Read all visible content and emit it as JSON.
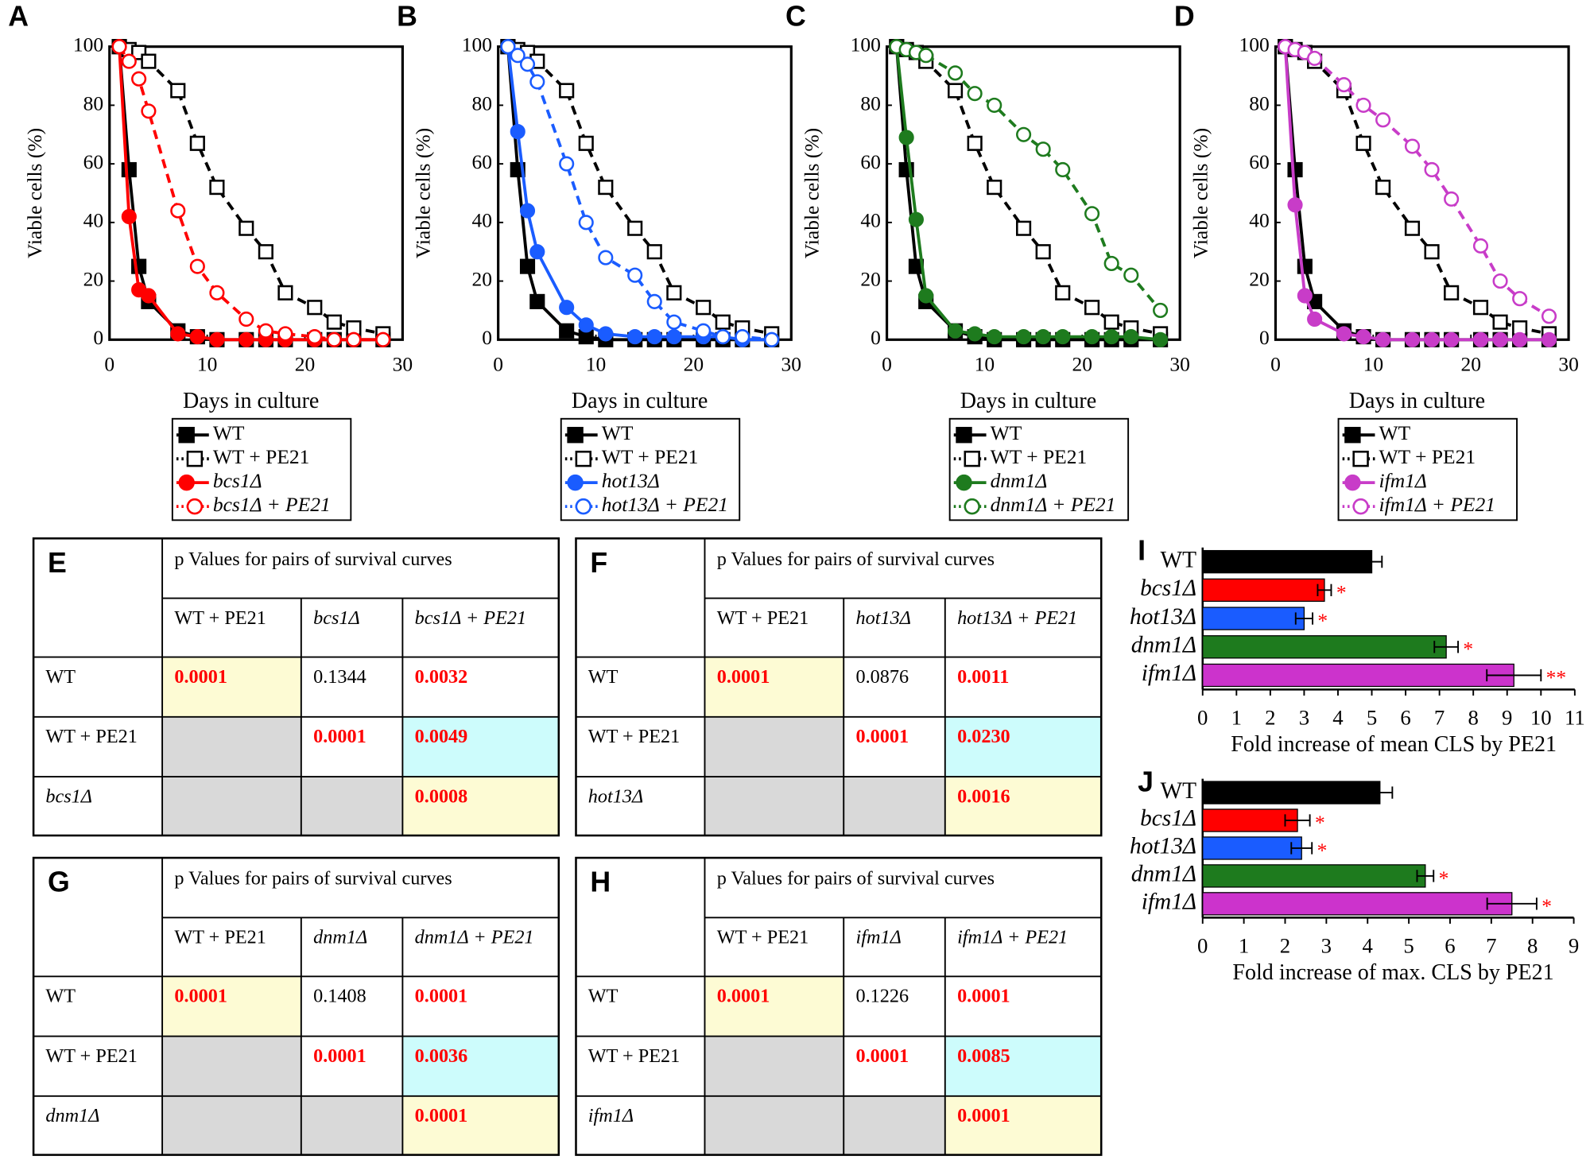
{
  "chart_data": [
    {
      "type": "line",
      "panel": "A",
      "ylabel": "Viable cells (%)",
      "xlabel": "Days in culture",
      "x": [
        1,
        2,
        3,
        4,
        7,
        9,
        11,
        14,
        16,
        18,
        21,
        23,
        25,
        28
      ],
      "xlim": [
        0,
        30
      ],
      "xticks": [
        0,
        10,
        20,
        30
      ],
      "ylim": [
        0,
        100
      ],
      "yticks": [
        0,
        20,
        40,
        60,
        80,
        100
      ],
      "series": [
        {
          "name": "WT",
          "color": "#000000",
          "marker": "square",
          "filled": true,
          "dashed": false,
          "values": [
            100,
            58,
            25,
            13,
            3,
            1,
            0,
            0,
            0,
            0,
            0,
            0,
            0,
            0
          ]
        },
        {
          "name": "WT + PE21",
          "color": "#000000",
          "marker": "square",
          "filled": false,
          "dashed": true,
          "values": [
            100,
            99,
            98,
            95,
            85,
            67,
            52,
            38,
            30,
            16,
            11,
            6,
            4,
            2
          ]
        },
        {
          "name": "bcs1Δ",
          "color": "#ff0000",
          "marker": "circle",
          "filled": true,
          "dashed": false,
          "values": [
            100,
            42,
            17,
            15,
            2,
            1,
            0,
            0,
            0,
            0,
            0,
            0,
            0,
            0
          ]
        },
        {
          "name": "bcs1Δ + PE21",
          "color": "#ff0000",
          "marker": "circle",
          "filled": false,
          "dashed": true,
          "values": [
            100,
            95,
            89,
            78,
            44,
            25,
            16,
            7,
            3,
            2,
            1,
            0,
            0,
            0
          ]
        }
      ]
    },
    {
      "type": "line",
      "panel": "B",
      "ylabel": "Viable cells (%)",
      "xlabel": "Days in culture",
      "x": [
        1,
        2,
        3,
        4,
        7,
        9,
        11,
        14,
        16,
        18,
        21,
        23,
        25,
        28
      ],
      "xlim": [
        0,
        30
      ],
      "xticks": [
        0,
        10,
        20,
        30
      ],
      "ylim": [
        0,
        100
      ],
      "yticks": [
        0,
        20,
        40,
        60,
        80,
        100
      ],
      "series": [
        {
          "name": "WT",
          "color": "#000000",
          "marker": "square",
          "filled": true,
          "dashed": false,
          "values": [
            100,
            58,
            25,
            13,
            3,
            1,
            0,
            0,
            0,
            0,
            0,
            0,
            0,
            0
          ]
        },
        {
          "name": "WT + PE21",
          "color": "#000000",
          "marker": "square",
          "filled": false,
          "dashed": true,
          "values": [
            100,
            99,
            98,
            95,
            85,
            67,
            52,
            38,
            30,
            16,
            11,
            6,
            4,
            2
          ]
        },
        {
          "name": "hot13Δ",
          "color": "#1a5cff",
          "marker": "circle",
          "filled": true,
          "dashed": false,
          "values": [
            100,
            71,
            44,
            30,
            11,
            5,
            2,
            1,
            1,
            1,
            1,
            1,
            0,
            0
          ]
        },
        {
          "name": "hot13Δ + PE21",
          "color": "#1a5cff",
          "marker": "circle",
          "filled": false,
          "dashed": true,
          "values": [
            100,
            97,
            94,
            88,
            60,
            40,
            28,
            22,
            13,
            6,
            3,
            1,
            1,
            0
          ]
        }
      ]
    },
    {
      "type": "line",
      "panel": "C",
      "ylabel": "Viable cells (%)",
      "xlabel": "Days in culture",
      "x": [
        1,
        2,
        3,
        4,
        7,
        9,
        11,
        14,
        16,
        18,
        21,
        23,
        25,
        28
      ],
      "xlim": [
        0,
        30
      ],
      "xticks": [
        0,
        10,
        20,
        30
      ],
      "ylim": [
        0,
        100
      ],
      "yticks": [
        0,
        20,
        40,
        60,
        80,
        100
      ],
      "series": [
        {
          "name": "WT",
          "color": "#000000",
          "marker": "square",
          "filled": true,
          "dashed": false,
          "values": [
            100,
            58,
            25,
            13,
            3,
            1,
            0,
            0,
            0,
            0,
            0,
            0,
            0,
            0
          ]
        },
        {
          "name": "WT + PE21",
          "color": "#000000",
          "marker": "square",
          "filled": false,
          "dashed": true,
          "values": [
            100,
            99,
            98,
            95,
            85,
            67,
            52,
            38,
            30,
            16,
            11,
            6,
            4,
            2
          ]
        },
        {
          "name": "dnm1Δ",
          "color": "#1e7b1e",
          "marker": "circle",
          "filled": true,
          "dashed": false,
          "values": [
            100,
            69,
            41,
            15,
            3,
            2,
            1,
            1,
            1,
            1,
            1,
            1,
            1,
            0
          ]
        },
        {
          "name": "dnm1Δ + PE21",
          "color": "#1e7b1e",
          "marker": "circle",
          "filled": false,
          "dashed": true,
          "values": [
            100,
            99,
            98,
            97,
            91,
            84,
            80,
            70,
            65,
            58,
            43,
            26,
            22,
            10
          ]
        }
      ]
    },
    {
      "type": "line",
      "panel": "D",
      "ylabel": "Viable cells (%)",
      "xlabel": "Days in culture",
      "x": [
        1,
        2,
        3,
        4,
        7,
        9,
        11,
        14,
        16,
        18,
        21,
        23,
        25,
        28
      ],
      "xlim": [
        0,
        30
      ],
      "xticks": [
        0,
        10,
        20,
        30
      ],
      "ylim": [
        0,
        100
      ],
      "yticks": [
        0,
        20,
        40,
        60,
        80,
        100
      ],
      "series": [
        {
          "name": "WT",
          "color": "#000000",
          "marker": "square",
          "filled": true,
          "dashed": false,
          "values": [
            100,
            58,
            25,
            13,
            3,
            1,
            0,
            0,
            0,
            0,
            0,
            0,
            0,
            0
          ]
        },
        {
          "name": "WT + PE21",
          "color": "#000000",
          "marker": "square",
          "filled": false,
          "dashed": true,
          "values": [
            100,
            99,
            98,
            95,
            85,
            67,
            52,
            38,
            30,
            16,
            11,
            6,
            4,
            2
          ]
        },
        {
          "name": "ifm1Δ",
          "color": "#c83cc8",
          "marker": "circle",
          "filled": true,
          "dashed": false,
          "values": [
            100,
            46,
            15,
            7,
            2,
            1,
            0,
            0,
            0,
            0,
            0,
            0,
            0,
            0
          ]
        },
        {
          "name": "ifm1Δ + PE21",
          "color": "#c83cc8",
          "marker": "circle",
          "filled": false,
          "dashed": true,
          "values": [
            100,
            99,
            98,
            96,
            87,
            80,
            75,
            66,
            58,
            48,
            32,
            20,
            14,
            8
          ]
        }
      ]
    },
    {
      "type": "barh",
      "panel": "I",
      "xlabel": "Fold increase of mean CLS by PE21",
      "categories": [
        "WT",
        "bcs1Δ",
        "hot13Δ",
        "dnm1Δ",
        "ifm1Δ"
      ],
      "values": [
        5.0,
        3.6,
        3.0,
        7.2,
        9.2
      ],
      "errors": [
        0.3,
        0.2,
        0.25,
        0.35,
        0.8
      ],
      "colors": [
        "#000000",
        "#ff0000",
        "#1a5cff",
        "#1e7b1e",
        "#cc33cc"
      ],
      "significance": [
        null,
        "*",
        "*",
        "*",
        "**"
      ],
      "xlim": [
        0,
        11
      ],
      "xticks": [
        0,
        1,
        2,
        3,
        4,
        5,
        6,
        7,
        8,
        9,
        10,
        11
      ]
    },
    {
      "type": "barh",
      "panel": "J",
      "xlabel": "Fold increase of max. CLS by PE21",
      "categories": [
        "WT",
        "bcs1Δ",
        "hot13Δ",
        "dnm1Δ",
        "ifm1Δ"
      ],
      "values": [
        4.3,
        2.3,
        2.4,
        5.4,
        7.5
      ],
      "errors": [
        0.3,
        0.3,
        0.25,
        0.2,
        0.6
      ],
      "colors": [
        "#000000",
        "#ff0000",
        "#1a5cff",
        "#1e7b1e",
        "#cc33cc"
      ],
      "significance": [
        null,
        "*",
        "*",
        "*",
        "*"
      ],
      "xlim": [
        0,
        9
      ],
      "xticks": [
        0,
        1,
        2,
        3,
        4,
        5,
        6,
        7,
        8,
        9
      ]
    }
  ],
  "tables": [
    {
      "panel": "E",
      "header": "p Values for pairs of survival curves",
      "columns": [
        "WT + PE21",
        "bcs1Δ",
        "bcs1Δ + PE21"
      ],
      "rows": [
        {
          "label": "WT",
          "cells": [
            "0.0001",
            "0.1344",
            "0.0032"
          ]
        },
        {
          "label": "WT + PE21",
          "cells": [
            null,
            "0.0001",
            "0.0049"
          ]
        },
        {
          "label": "bcs1Δ",
          "cells": [
            null,
            null,
            "0.0008"
          ]
        }
      ]
    },
    {
      "panel": "F",
      "header": "p Values for pairs of survival curves",
      "columns": [
        "WT + PE21",
        "hot13Δ",
        "hot13Δ + PE21"
      ],
      "rows": [
        {
          "label": "WT",
          "cells": [
            "0.0001",
            "0.0876",
            "0.0011"
          ]
        },
        {
          "label": "WT + PE21",
          "cells": [
            null,
            "0.0001",
            "0.0230"
          ]
        },
        {
          "label": "hot13Δ",
          "cells": [
            null,
            null,
            "0.0016"
          ]
        }
      ]
    },
    {
      "panel": "G",
      "header": "p Values for pairs of survival curves",
      "columns": [
        "WT + PE21",
        "dnm1Δ",
        "dnm1Δ + PE21"
      ],
      "rows": [
        {
          "label": "WT",
          "cells": [
            "0.0001",
            "0.1408",
            "0.0001"
          ]
        },
        {
          "label": "WT + PE21",
          "cells": [
            null,
            "0.0001",
            "0.0036"
          ]
        },
        {
          "label": "dnm1Δ",
          "cells": [
            null,
            null,
            "0.0001"
          ]
        }
      ]
    },
    {
      "panel": "H",
      "header": "p Values for pairs of survival curves",
      "columns": [
        "WT + PE21",
        "ifm1Δ",
        "ifm1Δ + PE21"
      ],
      "rows": [
        {
          "label": "WT",
          "cells": [
            "0.0001",
            "0.1226",
            "0.0001"
          ]
        },
        {
          "label": "WT + PE21",
          "cells": [
            null,
            "0.0001",
            "0.0085"
          ]
        },
        {
          "label": "ifm1Δ",
          "cells": [
            null,
            null,
            "0.0001"
          ]
        }
      ]
    }
  ]
}
